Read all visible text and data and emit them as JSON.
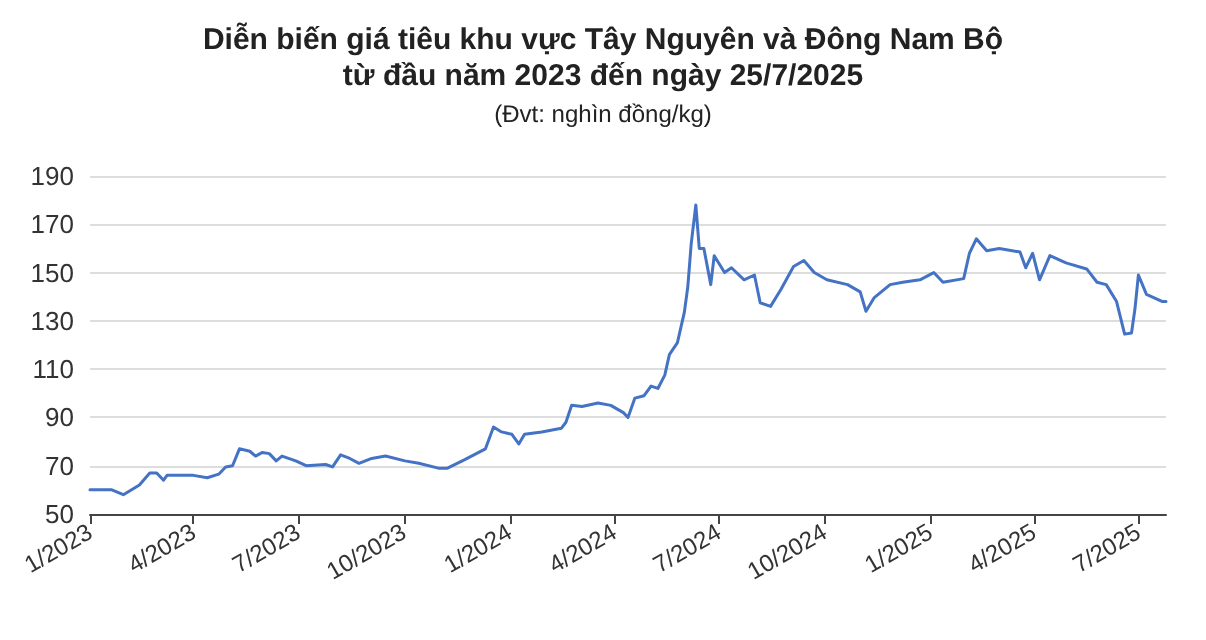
{
  "chart_data": {
    "type": "line",
    "title": "Diễn biến giá tiêu khu vực Tây Nguyên và Đông Nam Bộ\ntừ đầu năm 2023 đến ngày 25/7/2025",
    "subtitle": "(Đvt: nghìn đồng/kg)",
    "x": [
      "2023-01-01",
      "2023-01-20",
      "2023-01-30",
      "2023-02-13",
      "2023-02-22",
      "2023-02-28",
      "2023-03-06",
      "2023-03-09",
      "2023-04-01",
      "2023-04-13",
      "2023-04-23",
      "2023-04-29",
      "2023-05-05",
      "2023-05-11",
      "2023-05-20",
      "2023-05-25",
      "2023-05-31",
      "2023-06-06",
      "2023-06-12",
      "2023-06-17",
      "2023-06-29",
      "2023-07-08",
      "2023-07-25",
      "2023-07-31",
      "2023-08-07",
      "2023-08-15",
      "2023-08-23",
      "2023-09-03",
      "2023-09-15",
      "2023-10-02",
      "2023-10-14",
      "2023-10-31",
      "2023-11-08",
      "2023-11-23",
      "2023-12-11",
      "2023-12-18",
      "2023-12-25",
      "2024-01-03",
      "2024-01-09",
      "2024-01-14",
      "2024-01-29",
      "2024-02-15",
      "2024-02-19",
      "2024-02-24",
      "2024-03-04",
      "2024-03-18",
      "2024-03-29",
      "2024-04-09",
      "2024-04-13",
      "2024-04-19",
      "2024-04-27",
      "2024-05-03",
      "2024-05-09",
      "2024-05-15",
      "2024-05-19",
      "2024-05-26",
      "2024-06-01",
      "2024-06-04",
      "2024-06-07",
      "2024-06-11",
      "2024-06-14",
      "2024-06-18",
      "2024-06-24",
      "2024-06-27",
      "2024-07-06",
      "2024-07-12",
      "2024-07-23",
      "2024-08-01",
      "2024-08-06",
      "2024-08-15",
      "2024-08-24",
      "2024-09-04",
      "2024-09-13",
      "2024-09-22",
      "2024-10-03",
      "2024-10-21",
      "2024-11-01",
      "2024-11-06",
      "2024-11-13",
      "2024-11-27",
      "2024-12-08",
      "2024-12-23",
      "2025-01-04",
      "2025-01-12",
      "2025-01-30",
      "2025-02-04",
      "2025-02-10",
      "2025-02-19",
      "2025-03-02",
      "2025-03-20",
      "2025-03-25",
      "2025-03-31",
      "2025-04-06",
      "2025-04-15",
      "2025-04-29",
      "2025-05-17",
      "2025-05-26",
      "2025-06-03",
      "2025-06-12",
      "2025-06-19",
      "2025-06-25",
      "2025-06-28",
      "2025-07-01",
      "2025-07-08",
      "2025-07-22",
      "2025-07-25"
    ],
    "series": [
      {
        "color": "#4472c4",
        "values": [
          60,
          60,
          58,
          62,
          67,
          67,
          64,
          66,
          66,
          65,
          66.5,
          69.5,
          70,
          77,
          76,
          74,
          75.5,
          75,
          72,
          74,
          72,
          70,
          70.5,
          69.5,
          74.5,
          73,
          71,
          73,
          74,
          72,
          71,
          69,
          69,
          72.5,
          77,
          86,
          84,
          83,
          79,
          83,
          84,
          85.5,
          88,
          95,
          94.5,
          96,
          95,
          92,
          90,
          98,
          99,
          103,
          102,
          107.5,
          116,
          121,
          133.5,
          144,
          162,
          178,
          160,
          160,
          145,
          157,
          150,
          152,
          147,
          149,
          137.5,
          136,
          143,
          152.5,
          155,
          150,
          147,
          145,
          142,
          134,
          139.5,
          145,
          146,
          147,
          150,
          146,
          147.5,
          158,
          164,
          159,
          160,
          158.5,
          152,
          158,
          147,
          157,
          154,
          151.5,
          146,
          145,
          138,
          124.5,
          125,
          135,
          149,
          141,
          138,
          138
        ]
      }
    ],
    "xlim": [
      "2023-01-01",
      "2025-07-25"
    ],
    "xticks": [
      {
        "value": "2023-01",
        "label": "1/2023"
      },
      {
        "value": "2023-04",
        "label": "4/2023"
      },
      {
        "value": "2023-07",
        "label": "7/2023"
      },
      {
        "value": "2023-10",
        "label": "10/2023"
      },
      {
        "value": "2024-01",
        "label": "1/2024"
      },
      {
        "value": "2024-04",
        "label": "4/2024"
      },
      {
        "value": "2024-07",
        "label": "7/2024"
      },
      {
        "value": "2024-10",
        "label": "10/2024"
      },
      {
        "value": "2025-01",
        "label": "1/2025"
      },
      {
        "value": "2025-04",
        "label": "4/2025"
      },
      {
        "value": "2025-07",
        "label": "7/2025"
      }
    ],
    "ylim": [
      50,
      190
    ],
    "yticks": [
      50,
      70,
      90,
      110,
      130,
      150,
      170,
      190
    ],
    "grid": "y",
    "marker": "none",
    "line_style": "solid"
  }
}
